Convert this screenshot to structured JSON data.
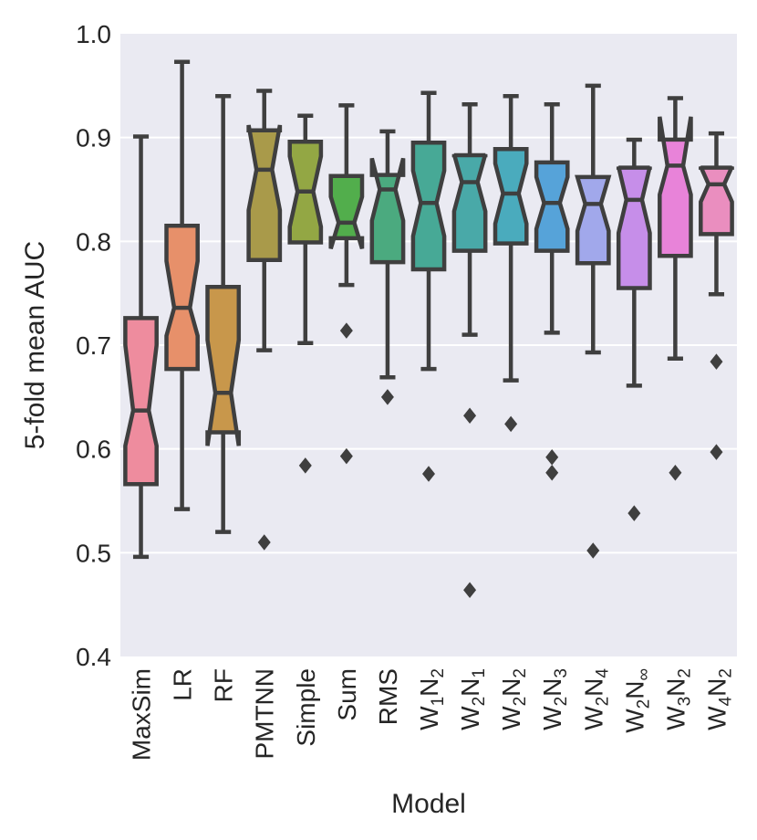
{
  "chart_data": {
    "type": "boxplot",
    "title": "",
    "xlabel": "Model",
    "ylabel": "5-fold mean AUC",
    "ylim": [
      0.4,
      1.0
    ],
    "yticks": [
      "0.4",
      "0.5",
      "0.6",
      "0.7",
      "0.8",
      "0.9",
      "1.0"
    ],
    "notched": true,
    "grid": true,
    "series": [
      {
        "label": "MaxSim",
        "sub": "",
        "color": "#ee8c9e",
        "whislo": 0.496,
        "q1": 0.566,
        "med": 0.637,
        "q3": 0.726,
        "whishi": 0.901,
        "nlo": 0.603,
        "nhi": 0.7,
        "fliers": []
      },
      {
        "label": "LR",
        "sub": "",
        "color": "#e7906a",
        "whislo": 0.542,
        "q1": 0.677,
        "med": 0.736,
        "q3": 0.815,
        "whishi": 0.973,
        "nlo": 0.709,
        "nhi": 0.781,
        "fliers": []
      },
      {
        "label": "RF",
        "sub": "",
        "color": "#c8974b",
        "whislo": 0.52,
        "q1": 0.616,
        "med": 0.654,
        "q3": 0.756,
        "whishi": 0.94,
        "nlo": 0.603,
        "nhi": 0.705,
        "fliers": []
      },
      {
        "label": "PMTNN",
        "sub": "",
        "color": "#a99a4a",
        "whislo": 0.695,
        "q1": 0.782,
        "med": 0.869,
        "q3": 0.907,
        "whishi": 0.945,
        "nlo": 0.83,
        "nhi": 0.912,
        "fliers": [
          0.51
        ]
      },
      {
        "label": "Simple",
        "sub": "",
        "color": "#93a744",
        "whislo": 0.702,
        "q1": 0.799,
        "med": 0.848,
        "q3": 0.896,
        "whishi": 0.921,
        "nlo": 0.814,
        "nhi": 0.882,
        "fliers": [
          0.584
        ]
      },
      {
        "label": "Sum",
        "sub": "",
        "color": "#52ae4c",
        "whislo": 0.758,
        "q1": 0.803,
        "med": 0.818,
        "q3": 0.863,
        "whishi": 0.931,
        "nlo": 0.793,
        "nhi": 0.843,
        "fliers": [
          0.714,
          0.593
        ]
      },
      {
        "label": "RMS",
        "sub": "",
        "color": "#4baa7f",
        "whislo": 0.669,
        "q1": 0.78,
        "med": 0.85,
        "q3": 0.864,
        "whishi": 0.906,
        "nlo": 0.82,
        "nhi": 0.88,
        "fliers": [
          0.65
        ]
      },
      {
        "label": "W",
        "sub": "1",
        "tail": "N",
        "sub2": "2",
        "color": "#47a996",
        "whislo": 0.677,
        "q1": 0.773,
        "med": 0.837,
        "q3": 0.895,
        "whishi": 0.943,
        "nlo": 0.805,
        "nhi": 0.868,
        "fliers": [
          0.576
        ]
      },
      {
        "label": "W",
        "sub": "2",
        "tail": "N",
        "sub2": "1",
        "color": "#49a9a8",
        "whislo": 0.71,
        "q1": 0.791,
        "med": 0.857,
        "q3": 0.883,
        "whishi": 0.932,
        "nlo": 0.829,
        "nhi": 0.884,
        "fliers": [
          0.632,
          0.464
        ]
      },
      {
        "label": "W",
        "sub": "2",
        "tail": "N",
        "sub2": "2",
        "color": "#4aabbd",
        "whislo": 0.666,
        "q1": 0.798,
        "med": 0.846,
        "q3": 0.889,
        "whishi": 0.94,
        "nlo": 0.817,
        "nhi": 0.875,
        "fliers": [
          0.624
        ]
      },
      {
        "label": "W",
        "sub": "2",
        "tail": "N",
        "sub2": "3",
        "color": "#56a3d9",
        "whislo": 0.712,
        "q1": 0.791,
        "med": 0.837,
        "q3": 0.876,
        "whishi": 0.932,
        "nlo": 0.812,
        "nhi": 0.862,
        "fliers": [
          0.592,
          0.577
        ]
      },
      {
        "label": "W",
        "sub": "2",
        "tail": "N",
        "sub2": "4",
        "color": "#a1a8eb",
        "whislo": 0.693,
        "q1": 0.779,
        "med": 0.836,
        "q3": 0.862,
        "whishi": 0.95,
        "nlo": 0.81,
        "nhi": 0.862,
        "fliers": [
          0.502
        ]
      },
      {
        "label": "W",
        "sub": "2",
        "tail": "N",
        "sub2": "∞",
        "color": "#c68ee9",
        "whislo": 0.661,
        "q1": 0.755,
        "med": 0.84,
        "q3": 0.871,
        "whishi": 0.898,
        "nlo": 0.808,
        "nhi": 0.872,
        "fliers": [
          0.538
        ]
      },
      {
        "label": "W",
        "sub": "3",
        "tail": "N",
        "sub2": "2",
        "color": "#e883d9",
        "whislo": 0.687,
        "q1": 0.786,
        "med": 0.873,
        "q3": 0.898,
        "whishi": 0.938,
        "nlo": 0.845,
        "nhi": 0.92,
        "fliers": [
          0.577
        ]
      },
      {
        "label": "W",
        "sub": "4",
        "tail": "N",
        "sub2": "2",
        "color": "#ea8ebf",
        "whislo": 0.749,
        "q1": 0.807,
        "med": 0.855,
        "q3": 0.871,
        "whishi": 0.904,
        "nlo": 0.838,
        "nhi": 0.872,
        "fliers": [
          0.684,
          0.597
        ]
      }
    ]
  }
}
